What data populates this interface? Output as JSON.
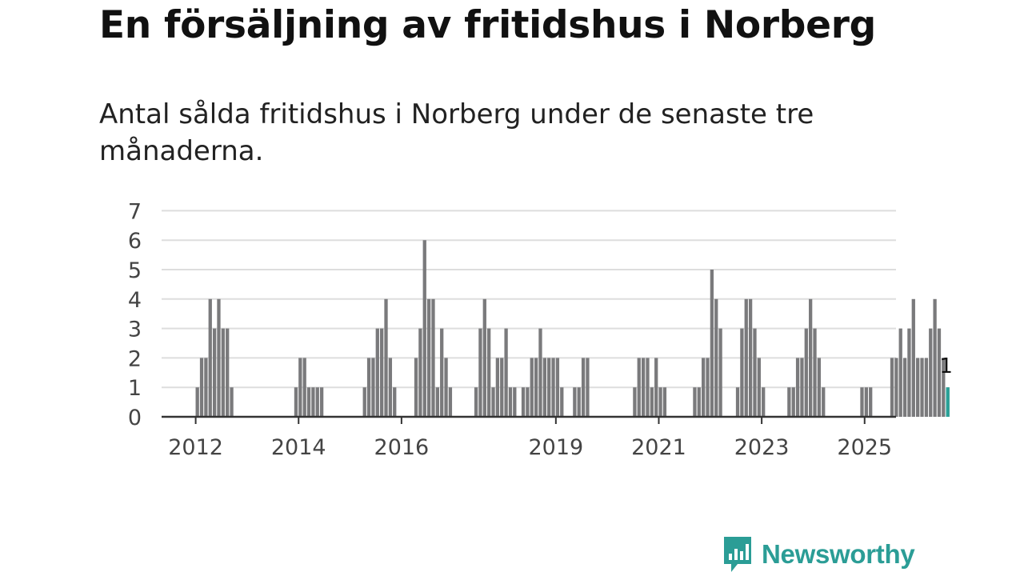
{
  "title": "En försäljning av fritidshus i Norberg",
  "subtitle": "Antal sålda fritidshus i Norberg under de senaste tre månaderna.",
  "brand": {
    "name": "Newsworthy",
    "icon": "bar-chart-speech-bubble-icon",
    "color": "#2b9d96"
  },
  "colors": {
    "bar": "#7a7a7c",
    "highlight": "#2aa198",
    "grid": "#dddddd",
    "axis": "#333333",
    "text": "#444444"
  },
  "chart_data": {
    "type": "bar",
    "title": "",
    "xlabel": "",
    "ylabel": "",
    "ylim": [
      0,
      7
    ],
    "yticks": [
      0,
      1,
      2,
      3,
      4,
      5,
      6,
      7
    ],
    "grid": true,
    "x_tick_labels": [
      {
        "label": "2012",
        "index": 0
      },
      {
        "label": "2014",
        "index": 24
      },
      {
        "label": "2016",
        "index": 48
      },
      {
        "label": "2019",
        "index": 84
      },
      {
        "label": "2021",
        "index": 108
      },
      {
        "label": "2023",
        "index": 132
      },
      {
        "label": "2025",
        "index": 156
      }
    ],
    "start_month": "2012-01",
    "values": [
      0,
      0,
      0,
      1,
      2,
      2,
      4,
      3,
      4,
      3,
      3,
      1,
      0,
      0,
      0,
      0,
      0,
      0,
      0,
      0,
      0,
      0,
      0,
      0,
      0,
      0,
      1,
      2,
      2,
      1,
      1,
      1,
      1,
      0,
      0,
      0,
      0,
      0,
      0,
      0,
      0,
      0,
      1,
      2,
      2,
      3,
      3,
      4,
      2,
      1,
      0,
      0,
      0,
      0,
      2,
      3,
      6,
      4,
      4,
      1,
      3,
      2,
      1,
      0,
      0,
      0,
      0,
      0,
      1,
      3,
      4,
      3,
      1,
      2,
      2,
      3,
      1,
      1,
      0,
      1,
      1,
      2,
      2,
      3,
      2,
      2,
      2,
      2,
      1,
      0,
      0,
      1,
      1,
      2,
      2,
      0,
      0,
      0,
      0,
      0,
      0,
      0,
      0,
      0,
      0,
      1,
      2,
      2,
      2,
      1,
      2,
      1,
      1,
      0,
      0,
      0,
      0,
      0,
      0,
      1,
      1,
      2,
      2,
      5,
      4,
      3,
      0,
      0,
      0,
      1,
      3,
      4,
      4,
      3,
      2,
      1,
      0,
      0,
      0,
      0,
      0,
      1,
      1,
      2,
      2,
      3,
      4,
      3,
      2,
      1,
      0,
      0,
      0,
      0,
      0,
      0,
      0,
      0,
      1,
      1,
      1,
      0,
      0,
      0,
      0,
      2,
      2,
      3,
      2,
      3,
      4,
      2,
      2,
      2,
      3,
      4,
      3,
      2,
      1
    ],
    "highlight": {
      "index": 178,
      "value": 1,
      "label": "1"
    }
  }
}
